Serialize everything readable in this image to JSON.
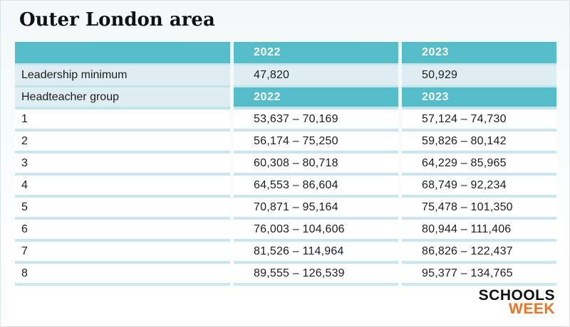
{
  "chart_data": {
    "type": "table",
    "title": "Outer London area",
    "header_row": {
      "blank": "",
      "y2022": "2022",
      "y2023": "2023"
    },
    "leadership_row": {
      "label": "Leadership minimum",
      "y2022": "47,820",
      "y2023": "50,929"
    },
    "group_header_row": {
      "label": "Headteacher group",
      "y2022": "2022",
      "y2023": "2023"
    },
    "group_rows": [
      {
        "group": "1",
        "y2022": "53,637 – 70,169",
        "y2023": "57,124 – 74,730"
      },
      {
        "group": "2",
        "y2022": "56,174 – 75,250",
        "y2023": "59,826 – 80,142"
      },
      {
        "group": "3",
        "y2022": "60,308 – 80,718",
        "y2023": "64,229 – 85,965"
      },
      {
        "group": "4",
        "y2022": "64,553 – 86,604",
        "y2023": "68,749 – 92,234"
      },
      {
        "group": "5",
        "y2022": "70,871 – 95,164",
        "y2023": "75,478 – 101,350"
      },
      {
        "group": "6",
        "y2022": "76,003 – 104,606",
        "y2023": "80,944 – 111,406"
      },
      {
        "group": "7",
        "y2022": "81,526 – 114,964",
        "y2023": "86,826 – 122,437"
      },
      {
        "group": "8",
        "y2022": "89,555 – 126,539",
        "y2023": "95,377 – 134,765"
      }
    ],
    "layout_hints": {
      "columns": 3,
      "value_alignment": "left",
      "units": "GBP salary ranges"
    }
  },
  "logo": {
    "schools": "SCHOOLS",
    "week": "WEEK"
  },
  "colors": {
    "accent_teal": "#55bdc9",
    "row_light_blue": "#ddedf2",
    "separator": "#c2e4ea",
    "logo_orange": "#ef7123",
    "text": "#1d1d1d",
    "background_top": "#f3f8f9"
  }
}
